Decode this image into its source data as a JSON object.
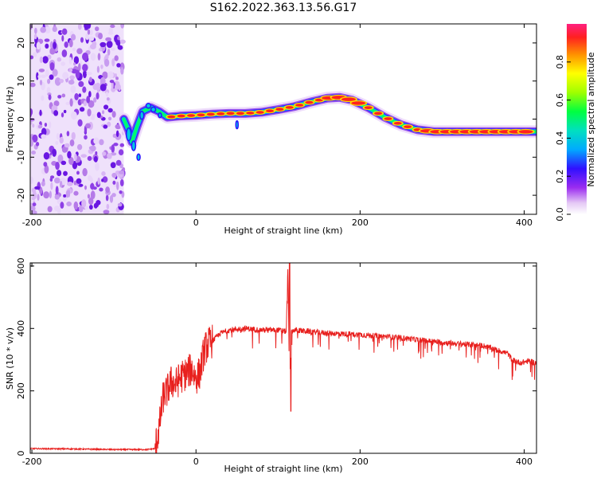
{
  "title": "S162.2022.363.13.56.G17",
  "chart_data": [
    {
      "type": "heatmap",
      "name": "spectrogram",
      "xlabel": "Height of straight line (km)",
      "ylabel": "Frequency (Hz)",
      "xlim": [
        -202,
        415
      ],
      "ylim": [
        -25,
        25
      ],
      "x_ticks": [
        -200,
        0,
        200,
        400
      ],
      "y_ticks": [
        -20,
        -10,
        0,
        10,
        20
      ],
      "noise_region_x": [
        -202,
        -88
      ],
      "ridge": [
        {
          "x": -88,
          "y": 0
        },
        {
          "x": -82,
          "y": -3
        },
        {
          "x": -78,
          "y": -6
        },
        {
          "x": -72,
          "y": -2
        },
        {
          "x": -65,
          "y": 2
        },
        {
          "x": -55,
          "y": 3
        },
        {
          "x": -45,
          "y": 2
        },
        {
          "x": -35,
          "y": 0.5
        },
        {
          "x": -20,
          "y": 0.8
        },
        {
          "x": 0,
          "y": 1
        },
        {
          "x": 20,
          "y": 1.3
        },
        {
          "x": 40,
          "y": 1.5
        },
        {
          "x": 60,
          "y": 1.5
        },
        {
          "x": 80,
          "y": 1.8
        },
        {
          "x": 100,
          "y": 2.5
        },
        {
          "x": 120,
          "y": 3.3
        },
        {
          "x": 140,
          "y": 4.5
        },
        {
          "x": 160,
          "y": 5.5
        },
        {
          "x": 175,
          "y": 5.7
        },
        {
          "x": 190,
          "y": 5
        },
        {
          "x": 210,
          "y": 3
        },
        {
          "x": 230,
          "y": 0.5
        },
        {
          "x": 250,
          "y": -1.5
        },
        {
          "x": 270,
          "y": -2.8
        },
        {
          "x": 290,
          "y": -3.3
        },
        {
          "x": 330,
          "y": -3.3
        },
        {
          "x": 380,
          "y": -3.3
        },
        {
          "x": 415,
          "y": -3.3
        }
      ],
      "colorbar": {
        "label": "Normalized spectral amplitude",
        "ticks": [
          "0.0",
          "0.2",
          "0.4",
          "0.6",
          "0.8"
        ],
        "range": [
          0,
          1
        ]
      }
    },
    {
      "type": "line",
      "name": "snr",
      "xlabel": "Height of straight line (km)",
      "ylabel": "SNR (10 * v/v)",
      "xlim": [
        -202,
        415
      ],
      "ylim": [
        0,
        610
      ],
      "x_ticks": [
        -200,
        0,
        200,
        400
      ],
      "y_ticks": [
        0,
        200,
        400,
        600
      ],
      "color": "#e8201e",
      "series": [
        {
          "x": [
            -202,
            -150,
            -100,
            -60,
            -50,
            -45,
            -40,
            -35,
            -30,
            -25,
            -20,
            -15,
            -10,
            -5,
            0,
            5,
            10,
            15,
            20,
            30,
            40,
            60,
            80,
            100,
            110,
            112,
            114,
            116,
            120,
            140,
            160,
            200,
            250,
            300,
            350,
            380,
            385,
            395,
            405,
            415
          ],
          "y": [
            15,
            14,
            12,
            12,
            15,
            80,
            180,
            200,
            230,
            220,
            240,
            250,
            260,
            270,
            240,
            260,
            330,
            350,
            360,
            385,
            395,
            400,
            395,
            395,
            390,
            600,
            200,
            390,
            395,
            390,
            385,
            380,
            370,
            355,
            345,
            320,
            300,
            290,
            295,
            290
          ]
        }
      ]
    }
  ]
}
